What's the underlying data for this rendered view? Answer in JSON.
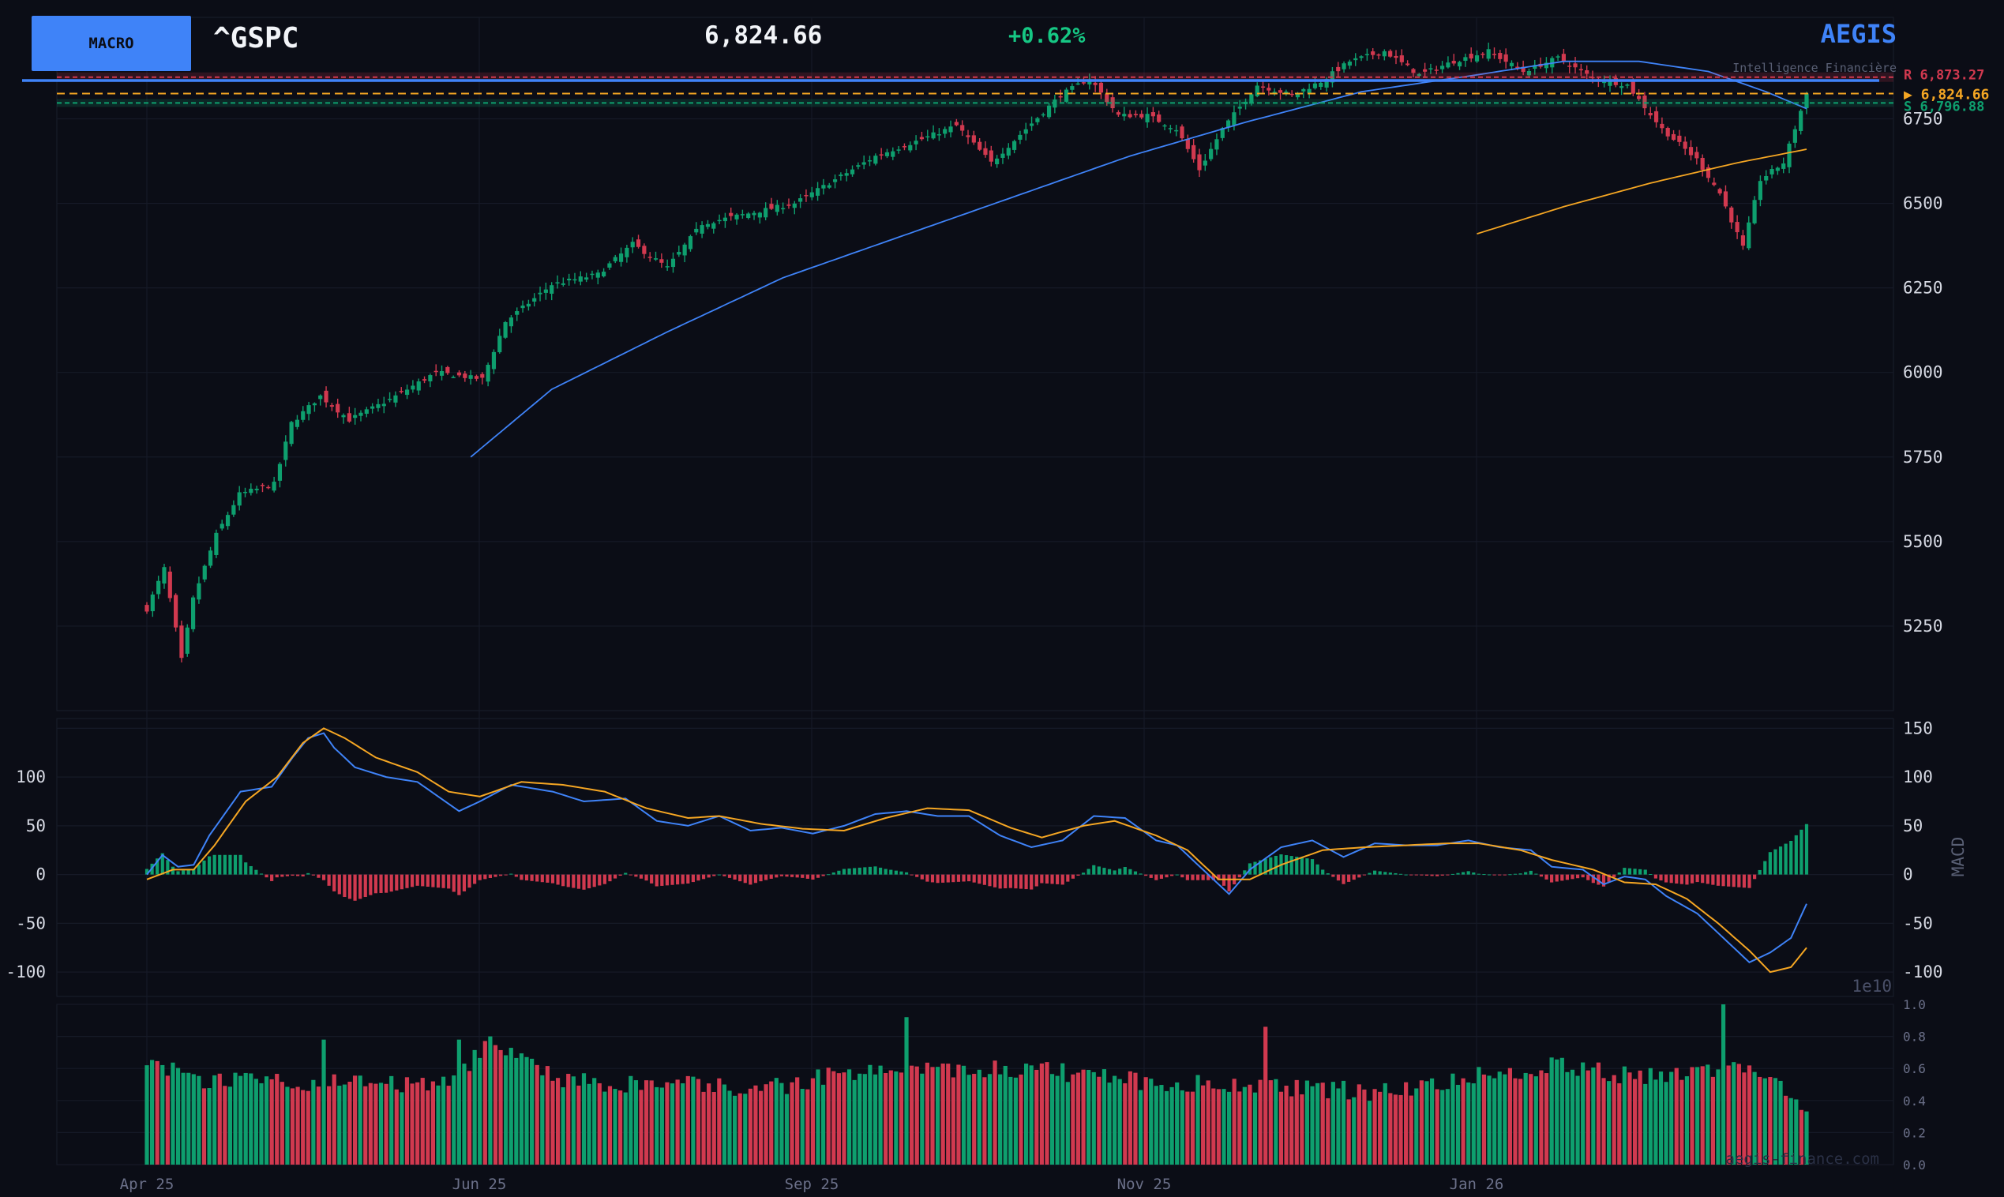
{
  "header": {
    "macro_button": "MACRO",
    "ticker": "^GSPC",
    "price": "6,824.66",
    "change": "+0.62%",
    "brand": "AEGIS",
    "brand_tagline": "Intelligence Financière",
    "watermark": "aegis-finance.com"
  },
  "colors": {
    "background": "#0b0d16",
    "up": "#0e9f6e",
    "down": "#d1394f",
    "accent": "#3f83f8",
    "ma_short": "#3f83f8",
    "ma_long": "#f5a623",
    "macd_line": "#3f83f8",
    "signal_line": "#f5a623",
    "resistance": "#d1394f",
    "support": "#0e9f6e"
  },
  "levels": {
    "resistance_label": "R  6,873.27",
    "resistance": 6873.27,
    "last_label": "▶ 6,824.66",
    "last": 6824.66,
    "support_label": "S  6,796.88",
    "support": 6796.88
  },
  "chart_data": [
    {
      "type": "candlestick",
      "x_tick_labels": [
        "Apr 25",
        "Jun 25",
        "Sep 25",
        "Nov 25",
        "Jan 26"
      ],
      "y_ticks": [
        5250,
        5500,
        5750,
        6000,
        6250,
        6500,
        6750
      ],
      "ylim": [
        5000,
        7050
      ],
      "grid": true,
      "overlays": [
        "moving average (blue)",
        "moving average (orange)"
      ],
      "close_anchors": [
        {
          "i": 0,
          "v": 5300
        },
        {
          "i": 3,
          "v": 5420
        },
        {
          "i": 6,
          "v": 5150
        },
        {
          "i": 8,
          "v": 5330
        },
        {
          "i": 12,
          "v": 5520
        },
        {
          "i": 16,
          "v": 5640
        },
        {
          "i": 22,
          "v": 5670
        },
        {
          "i": 25,
          "v": 5850
        },
        {
          "i": 30,
          "v": 5930
        },
        {
          "i": 35,
          "v": 5860
        },
        {
          "i": 42,
          "v": 5920
        },
        {
          "i": 50,
          "v": 6000
        },
        {
          "i": 58,
          "v": 5980
        },
        {
          "i": 62,
          "v": 6150
        },
        {
          "i": 70,
          "v": 6260
        },
        {
          "i": 78,
          "v": 6290
        },
        {
          "i": 84,
          "v": 6380
        },
        {
          "i": 90,
          "v": 6310
        },
        {
          "i": 96,
          "v": 6440
        },
        {
          "i": 104,
          "v": 6470
        },
        {
          "i": 112,
          "v": 6500
        },
        {
          "i": 118,
          "v": 6560
        },
        {
          "i": 126,
          "v": 6640
        },
        {
          "i": 134,
          "v": 6690
        },
        {
          "i": 140,
          "v": 6730
        },
        {
          "i": 146,
          "v": 6620
        },
        {
          "i": 152,
          "v": 6720
        },
        {
          "i": 158,
          "v": 6820
        },
        {
          "i": 163,
          "v": 6870
        },
        {
          "i": 168,
          "v": 6760
        },
        {
          "i": 173,
          "v": 6760
        },
        {
          "i": 178,
          "v": 6720
        },
        {
          "i": 182,
          "v": 6600
        },
        {
          "i": 186,
          "v": 6720
        },
        {
          "i": 192,
          "v": 6850
        },
        {
          "i": 198,
          "v": 6820
        },
        {
          "i": 203,
          "v": 6860
        },
        {
          "i": 208,
          "v": 6920
        },
        {
          "i": 214,
          "v": 6950
        },
        {
          "i": 220,
          "v": 6880
        },
        {
          "i": 226,
          "v": 6920
        },
        {
          "i": 232,
          "v": 6950
        },
        {
          "i": 238,
          "v": 6890
        },
        {
          "i": 244,
          "v": 6930
        },
        {
          "i": 250,
          "v": 6870
        },
        {
          "i": 256,
          "v": 6850
        },
        {
          "i": 262,
          "v": 6720
        },
        {
          "i": 268,
          "v": 6630
        },
        {
          "i": 272,
          "v": 6530
        },
        {
          "i": 276,
          "v": 6370
        },
        {
          "i": 279,
          "v": 6570
        },
        {
          "i": 283,
          "v": 6620
        },
        {
          "i": 287,
          "v": 6825
        }
      ],
      "ma_short_range": {
        "start_i": 56,
        "anchors": [
          {
            "i": 56,
            "v": 5750
          },
          {
            "i": 70,
            "v": 5950
          },
          {
            "i": 90,
            "v": 6120
          },
          {
            "i": 110,
            "v": 6280
          },
          {
            "i": 130,
            "v": 6400
          },
          {
            "i": 150,
            "v": 6520
          },
          {
            "i": 170,
            "v": 6640
          },
          {
            "i": 190,
            "v": 6740
          },
          {
            "i": 210,
            "v": 6830
          },
          {
            "i": 230,
            "v": 6880
          },
          {
            "i": 245,
            "v": 6920
          },
          {
            "i": 258,
            "v": 6920
          },
          {
            "i": 270,
            "v": 6890
          },
          {
            "i": 280,
            "v": 6830
          },
          {
            "i": 287,
            "v": 6780
          }
        ]
      },
      "ma_long_range": {
        "start_i": 230,
        "anchors": [
          {
            "i": 230,
            "v": 6410
          },
          {
            "i": 245,
            "v": 6490
          },
          {
            "i": 260,
            "v": 6560
          },
          {
            "i": 275,
            "v": 6620
          },
          {
            "i": 287,
            "v": 6660
          }
        ]
      }
    },
    {
      "type": "line",
      "ylabel": "MACD",
      "y_ticks": [
        -100,
        -50,
        0,
        50,
        100,
        150
      ],
      "ylim": [
        -125,
        160
      ],
      "series_macd_anchors": [
        {
          "i": 0,
          "v": 0
        },
        {
          "i": 3,
          "v": 20
        },
        {
          "i": 6,
          "v": 8
        },
        {
          "i": 9,
          "v": 10
        },
        {
          "i": 12,
          "v": 40
        },
        {
          "i": 18,
          "v": 85
        },
        {
          "i": 24,
          "v": 90
        },
        {
          "i": 28,
          "v": 120
        },
        {
          "i": 31,
          "v": 140
        },
        {
          "i": 34,
          "v": 145
        },
        {
          "i": 36,
          "v": 130
        },
        {
          "i": 40,
          "v": 110
        },
        {
          "i": 46,
          "v": 100
        },
        {
          "i": 52,
          "v": 95
        },
        {
          "i": 56,
          "v": 80
        },
        {
          "i": 60,
          "v": 65
        },
        {
          "i": 64,
          "v": 75
        },
        {
          "i": 70,
          "v": 92
        },
        {
          "i": 78,
          "v": 85
        },
        {
          "i": 84,
          "v": 75
        },
        {
          "i": 92,
          "v": 78
        },
        {
          "i": 98,
          "v": 55
        },
        {
          "i": 104,
          "v": 50
        },
        {
          "i": 110,
          "v": 60
        },
        {
          "i": 116,
          "v": 45
        },
        {
          "i": 122,
          "v": 48
        },
        {
          "i": 128,
          "v": 42
        },
        {
          "i": 134,
          "v": 50
        },
        {
          "i": 140,
          "v": 62
        },
        {
          "i": 146,
          "v": 65
        },
        {
          "i": 152,
          "v": 60
        },
        {
          "i": 158,
          "v": 60
        },
        {
          "i": 164,
          "v": 40
        },
        {
          "i": 170,
          "v": 28
        },
        {
          "i": 176,
          "v": 35
        },
        {
          "i": 182,
          "v": 60
        },
        {
          "i": 188,
          "v": 58
        },
        {
          "i": 194,
          "v": 35
        },
        {
          "i": 198,
          "v": 30
        },
        {
          "i": 204,
          "v": 0
        },
        {
          "i": 208,
          "v": -20
        },
        {
          "i": 212,
          "v": 5
        },
        {
          "i": 218,
          "v": 28
        },
        {
          "i": 224,
          "v": 35
        },
        {
          "i": 230,
          "v": 18
        },
        {
          "i": 236,
          "v": 32
        },
        {
          "i": 242,
          "v": 30
        },
        {
          "i": 248,
          "v": 30
        },
        {
          "i": 254,
          "v": 35
        },
        {
          "i": 260,
          "v": 28
        },
        {
          "i": 266,
          "v": 25
        },
        {
          "i": 270,
          "v": 8
        },
        {
          "i": 276,
          "v": 5
        },
        {
          "i": 280,
          "v": -10
        },
        {
          "i": 284,
          "v": -2
        },
        {
          "i": 288,
          "v": -5
        },
        {
          "i": 292,
          "v": -22
        },
        {
          "i": 298,
          "v": -40
        },
        {
          "i": 304,
          "v": -70
        },
        {
          "i": 308,
          "v": -90
        },
        {
          "i": 312,
          "v": -80
        },
        {
          "i": 316,
          "v": -65
        },
        {
          "i": 319,
          "v": -30
        }
      ],
      "series_signal_anchors": [
        {
          "i": 0,
          "v": -5
        },
        {
          "i": 5,
          "v": 5
        },
        {
          "i": 9,
          "v": 5
        },
        {
          "i": 13,
          "v": 30
        },
        {
          "i": 19,
          "v": 75
        },
        {
          "i": 25,
          "v": 100
        },
        {
          "i": 30,
          "v": 135
        },
        {
          "i": 34,
          "v": 150
        },
        {
          "i": 38,
          "v": 140
        },
        {
          "i": 44,
          "v": 120
        },
        {
          "i": 52,
          "v": 105
        },
        {
          "i": 58,
          "v": 85
        },
        {
          "i": 64,
          "v": 80
        },
        {
          "i": 72,
          "v": 95
        },
        {
          "i": 80,
          "v": 92
        },
        {
          "i": 88,
          "v": 85
        },
        {
          "i": 96,
          "v": 68
        },
        {
          "i": 104,
          "v": 58
        },
        {
          "i": 110,
          "v": 60
        },
        {
          "i": 118,
          "v": 52
        },
        {
          "i": 126,
          "v": 47
        },
        {
          "i": 134,
          "v": 45
        },
        {
          "i": 142,
          "v": 58
        },
        {
          "i": 150,
          "v": 68
        },
        {
          "i": 158,
          "v": 66
        },
        {
          "i": 166,
          "v": 48
        },
        {
          "i": 172,
          "v": 38
        },
        {
          "i": 180,
          "v": 50
        },
        {
          "i": 186,
          "v": 55
        },
        {
          "i": 194,
          "v": 40
        },
        {
          "i": 200,
          "v": 25
        },
        {
          "i": 206,
          "v": -5
        },
        {
          "i": 212,
          "v": -5
        },
        {
          "i": 218,
          "v": 10
        },
        {
          "i": 226,
          "v": 25
        },
        {
          "i": 234,
          "v": 28
        },
        {
          "i": 242,
          "v": 30
        },
        {
          "i": 250,
          "v": 32
        },
        {
          "i": 256,
          "v": 32
        },
        {
          "i": 264,
          "v": 25
        },
        {
          "i": 270,
          "v": 15
        },
        {
          "i": 278,
          "v": 5
        },
        {
          "i": 284,
          "v": -8
        },
        {
          "i": 290,
          "v": -10
        },
        {
          "i": 296,
          "v": -25
        },
        {
          "i": 302,
          "v": -50
        },
        {
          "i": 308,
          "v": -78
        },
        {
          "i": 312,
          "v": -100
        },
        {
          "i": 316,
          "v": -95
        },
        {
          "i": 319,
          "v": -75
        }
      ]
    },
    {
      "type": "bar",
      "ylabel": "",
      "offset_label": "1e10",
      "y_ticks": [
        0.0,
        0.2,
        0.4,
        0.6,
        0.8,
        1.0
      ],
      "ylim": [
        0,
        1.0
      ],
      "volume_anchors": [
        {
          "i": 0,
          "v": 0.68
        },
        {
          "i": 10,
          "v": 0.5
        },
        {
          "i": 20,
          "v": 0.55
        },
        {
          "i": 30,
          "v": 0.52
        },
        {
          "i": 50,
          "v": 0.5
        },
        {
          "i": 60,
          "v": 0.55
        },
        {
          "i": 66,
          "v": 0.8
        },
        {
          "i": 80,
          "v": 0.52
        },
        {
          "i": 100,
          "v": 0.5
        },
        {
          "i": 120,
          "v": 0.48
        },
        {
          "i": 135,
          "v": 0.58
        },
        {
          "i": 150,
          "v": 0.6
        },
        {
          "i": 170,
          "v": 0.6
        },
        {
          "i": 190,
          "v": 0.52
        },
        {
          "i": 205,
          "v": 0.5
        },
        {
          "i": 220,
          "v": 0.48
        },
        {
          "i": 240,
          "v": 0.45
        },
        {
          "i": 255,
          "v": 0.55
        },
        {
          "i": 270,
          "v": 0.62
        },
        {
          "i": 285,
          "v": 0.55
        },
        {
          "i": 300,
          "v": 0.58
        },
        {
          "i": 310,
          "v": 0.6
        },
        {
          "i": 319,
          "v": 0.35
        }
      ],
      "volume_spikes": [
        {
          "i": 34,
          "v": 0.78
        },
        {
          "i": 60,
          "v": 0.78
        },
        {
          "i": 66,
          "v": 0.8
        },
        {
          "i": 146,
          "v": 0.92
        },
        {
          "i": 215,
          "v": 0.86
        },
        {
          "i": 303,
          "v": 1.0
        }
      ]
    }
  ]
}
